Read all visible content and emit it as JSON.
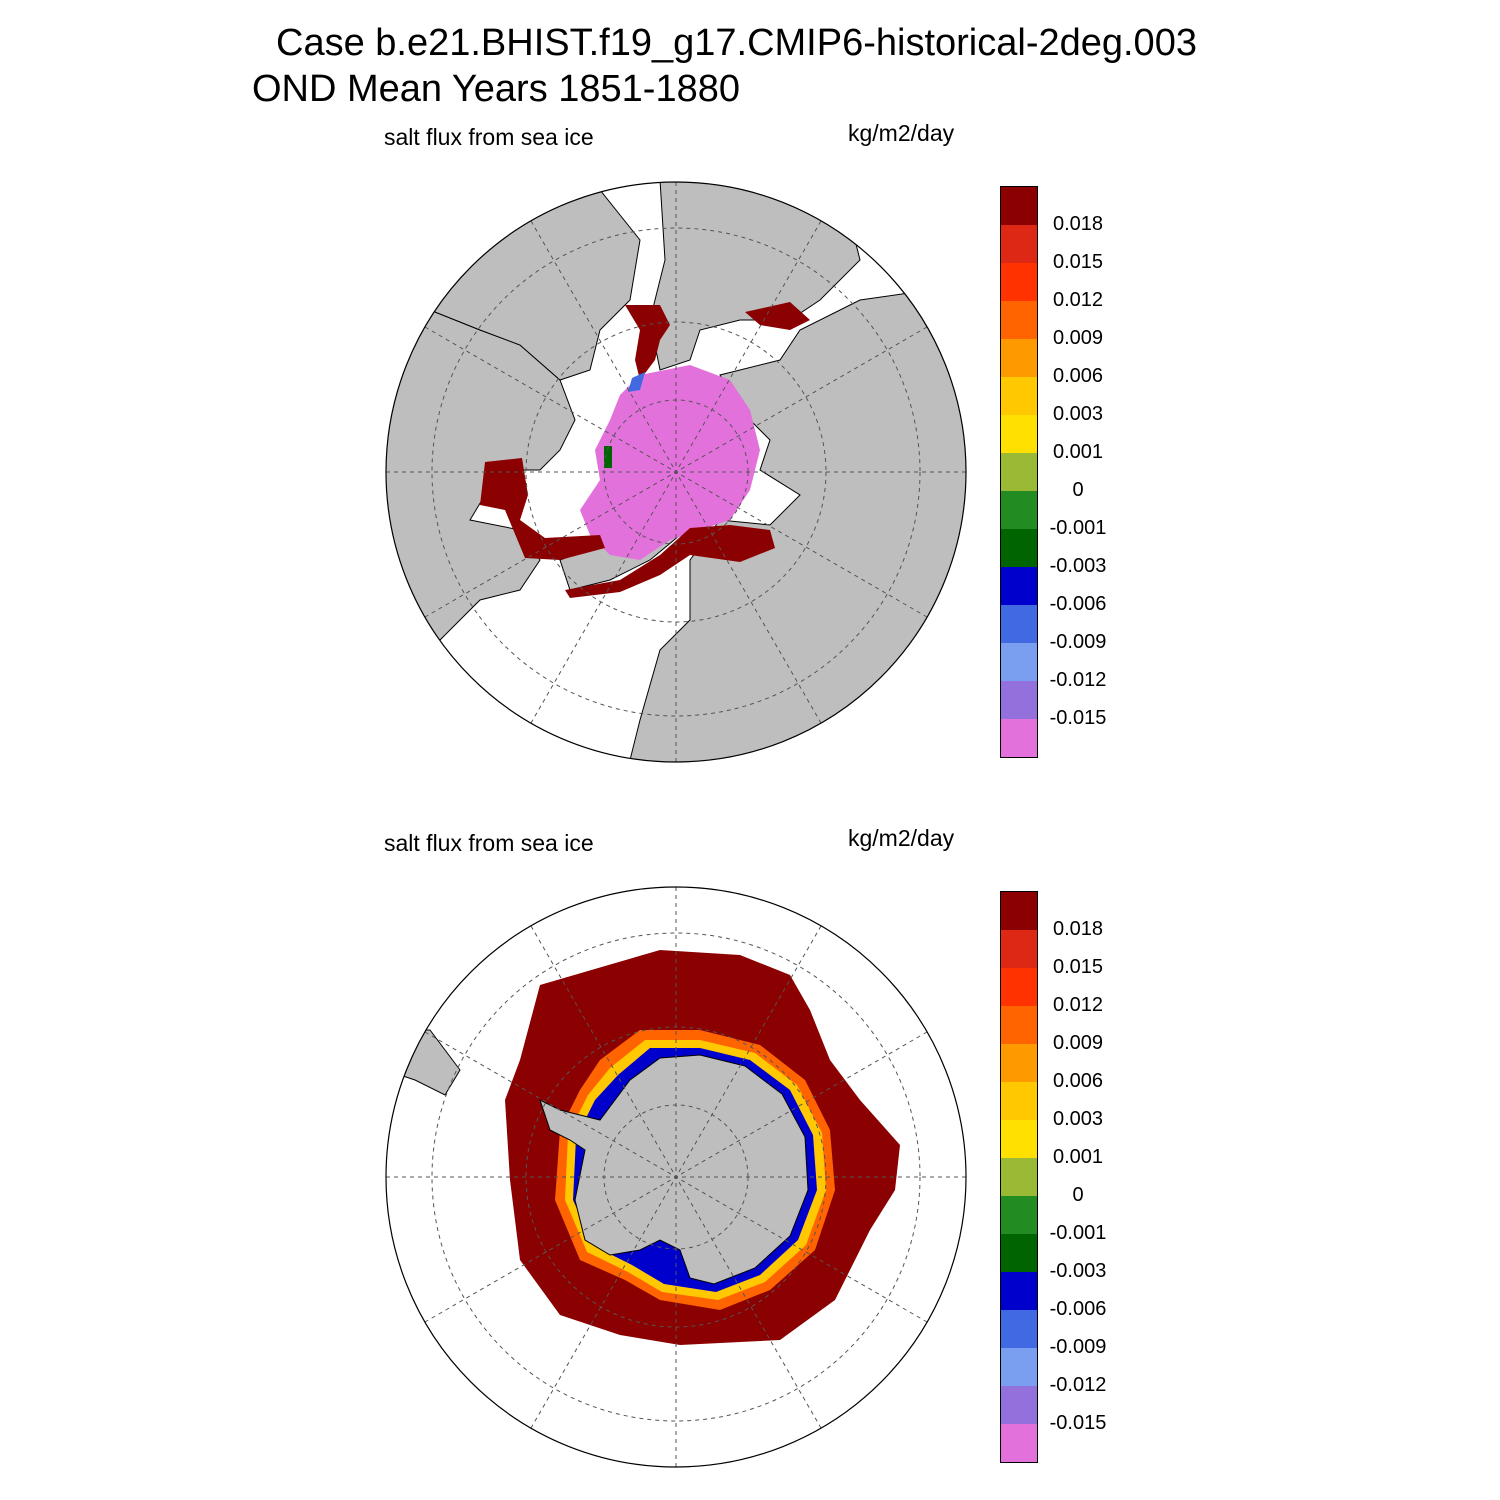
{
  "title": {
    "line1": "Case b.e21.BHIST.f19_g17.CMIP6-historical-2deg.003",
    "line2": "OND Mean   Years 1851-1880"
  },
  "colorbar": {
    "colors": [
      "#e371dc",
      "#9370db",
      "#7a9ef0",
      "#4169e1",
      "#0000cd",
      "#006400",
      "#228b22",
      "#9aba36",
      "#ffe000",
      "#ffc800",
      "#ff9900",
      "#ff6400",
      "#ff3200",
      "#dc2814",
      "#8b0000"
    ],
    "labels": [
      "-0.015",
      "-0.012",
      "-0.009",
      "-0.006",
      "-0.003",
      "-0.001",
      "0",
      "0.001",
      "0.003",
      "0.006",
      "0.009",
      "0.012",
      "0.015",
      "0.018"
    ]
  },
  "map_colors": {
    "land": "#bebebe",
    "ocean": "#ffffff",
    "outline": "#000000",
    "grid": "#555555"
  },
  "panels": [
    {
      "id": "north",
      "hemisphere": "Northern",
      "variable": "salt flux from sea ice",
      "units": "kg/m2/day"
    },
    {
      "id": "south",
      "hemisphere": "Southern",
      "variable": "salt flux from sea ice",
      "units": "kg/m2/day"
    }
  ]
}
